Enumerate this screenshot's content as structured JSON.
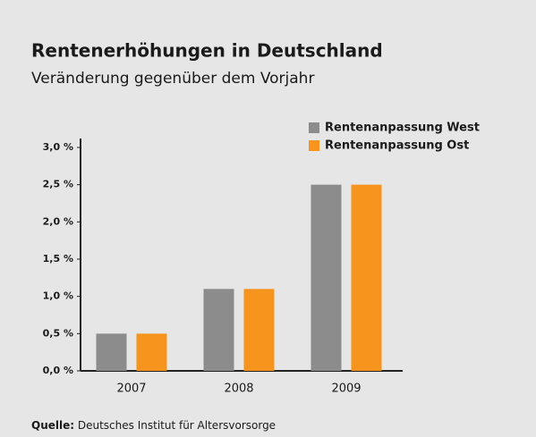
{
  "chart_data": {
    "type": "bar",
    "title": "Rentenerhöhungen in Deutschland",
    "subtitle": "Veränderung gegenüber dem Vorjahr",
    "categories": [
      "2007",
      "2008",
      "2009"
    ],
    "series": [
      {
        "name": "Rentenanpassung West",
        "color": "#8c8c8c",
        "values": [
          0.5,
          1.1,
          2.5
        ]
      },
      {
        "name": "Rentenanpassung Ost",
        "color": "#f7941d",
        "values": [
          0.5,
          1.1,
          2.5
        ]
      }
    ],
    "ylim": [
      0,
      3
    ],
    "yticks": [
      {
        "value": 0,
        "label": "0,0 %"
      },
      {
        "value": 0.5,
        "label": "0,5 %"
      },
      {
        "value": 1,
        "label": "1,0 %"
      },
      {
        "value": 1.5,
        "label": "1,5 %"
      },
      {
        "value": 2,
        "label": "2,0 %"
      },
      {
        "value": 2.5,
        "label": "2,5 %"
      },
      {
        "value": 3,
        "label": "3,0 %"
      }
    ],
    "legend": "top-right",
    "source_label": "Quelle:",
    "source_text": "Deutsches Institut für Altersvorsorge"
  }
}
